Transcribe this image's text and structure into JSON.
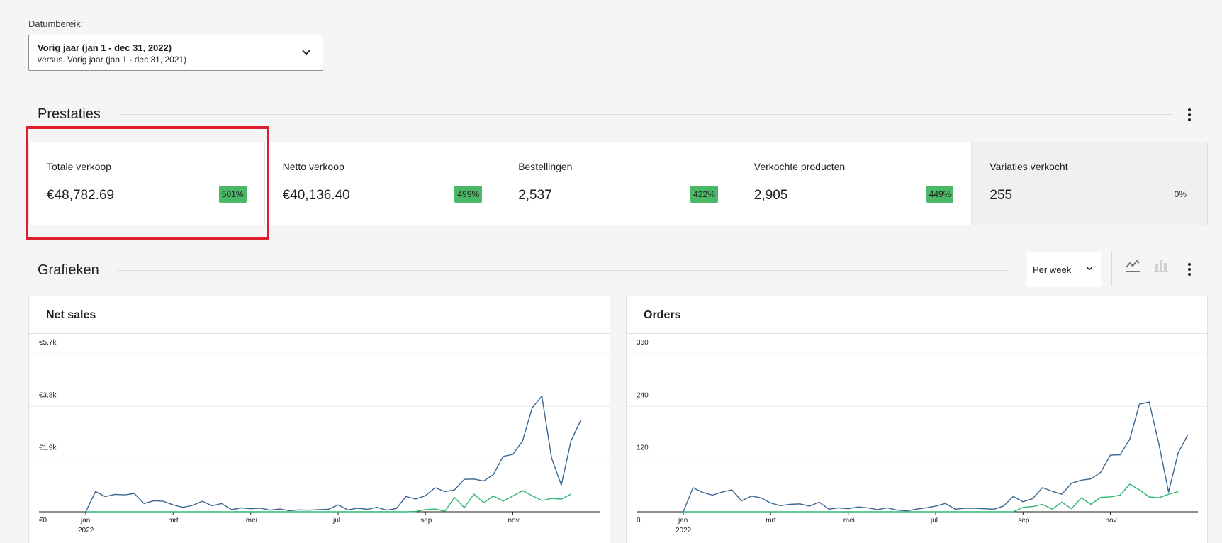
{
  "date_range": {
    "label": "Datumbereik:",
    "primary": "Vorig jaar (jan 1 - dec 31, 2022)",
    "secondary": "versus. Vorig jaar (jan 1 - dec 31, 2021)"
  },
  "performance": {
    "title": "Prestaties",
    "cards": [
      {
        "label": "Totale verkoop",
        "value": "€48,782.69",
        "delta": "501%"
      },
      {
        "label": "Netto verkoop",
        "value": "€40,136.40",
        "delta": "499%"
      },
      {
        "label": "Bestellingen",
        "value": "2,537",
        "delta": "422%"
      },
      {
        "label": "Verkochte producten",
        "value": "2,905",
        "delta": "449%"
      },
      {
        "label": "Variaties verkocht",
        "value": "255",
        "delta": "0%"
      }
    ]
  },
  "charts_section": {
    "title": "Grafieken",
    "interval": "Per week"
  },
  "colors": {
    "primary_series": "#3a6590",
    "secondary_series": "#2fb672",
    "highlight": "#e01e2b",
    "badge": "#4ab866"
  },
  "icons": [
    "chevron-down-icon",
    "kebab-menu-icon",
    "line-chart-icon",
    "bar-chart-icon"
  ],
  "chart_data": [
    {
      "type": "line",
      "title": "Net sales",
      "y_ticks": [
        "€5.7k",
        "€3.8k",
        "€1.9k",
        "€0"
      ],
      "ylim": [
        0,
        5700
      ],
      "x_ticks": [
        {
          "label": "jan",
          "sub": "2022",
          "week": 0
        },
        {
          "label": "mrt",
          "week": 9
        },
        {
          "label": "mei",
          "week": 17
        },
        {
          "label": "jul",
          "week": 26
        },
        {
          "label": "sep",
          "week": 35
        },
        {
          "label": "nov",
          "week": 44
        }
      ],
      "series": [
        {
          "values": [
            0,
            730,
            550,
            630,
            610,
            660,
            300,
            400,
            380,
            250,
            160,
            230,
            380,
            220,
            300,
            80,
            140,
            110,
            130,
            60,
            100,
            40,
            70,
            60,
            80,
            90,
            250,
            70,
            130,
            90,
            160,
            60,
            120,
            550,
            460,
            580,
            870,
            730,
            790,
            1170,
            1180,
            1110,
            1340,
            2000,
            2070,
            2550,
            3750,
            4170,
            1940,
            960,
            2560,
            3300
          ]
        },
        {
          "values": [
            0,
            0,
            0,
            0,
            0,
            0,
            0,
            0,
            0,
            0,
            0,
            0,
            0,
            0,
            0,
            0,
            0,
            0,
            0,
            0,
            0,
            0,
            0,
            0,
            0,
            0,
            0,
            0,
            0,
            0,
            0,
            0,
            0,
            0,
            10,
            80,
            100,
            20,
            520,
            150,
            640,
            330,
            570,
            390,
            570,
            760,
            580,
            410,
            480,
            460,
            640
          ]
        }
      ]
    },
    {
      "type": "line",
      "title": "Orders",
      "y_ticks": [
        "360",
        "240",
        "120",
        "0"
      ],
      "ylim": [
        0,
        360
      ],
      "x_ticks": [
        {
          "label": "jan",
          "sub": "2022",
          "week": 0
        },
        {
          "label": "mrt",
          "week": 9
        },
        {
          "label": "mei",
          "week": 17
        },
        {
          "label": "jul",
          "week": 26
        },
        {
          "label": "sep",
          "week": 35
        },
        {
          "label": "nov",
          "week": 44
        }
      ],
      "series": [
        {
          "values": [
            0,
            55,
            44,
            38,
            45,
            50,
            25,
            36,
            32,
            20,
            14,
            17,
            18,
            13,
            22,
            6,
            9,
            7,
            11,
            9,
            5,
            9,
            4,
            2,
            6,
            9,
            13,
            19,
            6,
            8,
            8,
            7,
            6,
            13,
            35,
            23,
            30,
            55,
            47,
            40,
            65,
            72,
            75,
            90,
            129,
            130,
            165,
            245,
            250,
            155,
            45,
            135,
            176
          ]
        },
        {
          "values": [
            0,
            0,
            0,
            0,
            0,
            0,
            0,
            0,
            0,
            0,
            0,
            0,
            0,
            0,
            0,
            0,
            0,
            0,
            0,
            0,
            0,
            0,
            0,
            0,
            0,
            0,
            0,
            0,
            0,
            0,
            0,
            0,
            0,
            0,
            0,
            10,
            12,
            17,
            6,
            22,
            7,
            32,
            17,
            33,
            34,
            38,
            63,
            50,
            34,
            32,
            40,
            46
          ]
        }
      ]
    }
  ]
}
